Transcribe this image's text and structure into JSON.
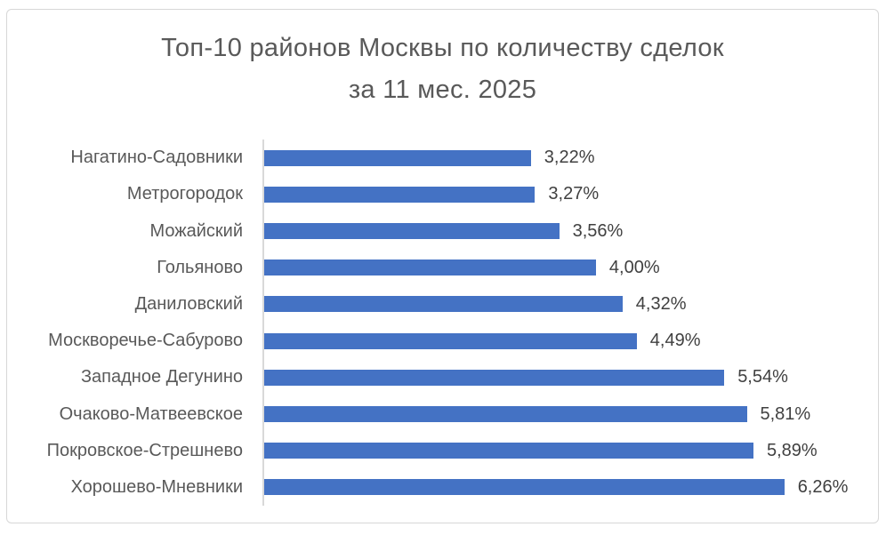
{
  "chart": {
    "title_line1": "Топ-10 районов Москвы по количеству сделок",
    "title_line2": "за 11 мес. 2025"
  },
  "chart_data": {
    "type": "bar",
    "orientation": "horizontal",
    "title": "Топ-10 районов Москвы по количеству сделок за 11 мес. 2025",
    "categories": [
      "Нагатино-Садовники",
      "Метрогородок",
      "Можайский",
      "Гольяново",
      "Даниловский",
      "Москворечье-Сабурово",
      "Западное Дегунино",
      "Очаково-Матвеевское",
      "Покровское-Стрешнево",
      "Хорошево-Мневники"
    ],
    "values": [
      3.22,
      3.27,
      3.56,
      4.0,
      4.32,
      4.49,
      5.54,
      5.81,
      5.89,
      6.26
    ],
    "value_labels": [
      "3,22%",
      "3,27%",
      "3,56%",
      "4,00%",
      "4,32%",
      "4,49%",
      "5,54%",
      "5,81%",
      "5,89%",
      "6,26%"
    ],
    "xlabel": "",
    "ylabel": "",
    "xlim": [
      0,
      7
    ],
    "grid": false,
    "legend": false,
    "data_labels": true,
    "colors": {
      "bar": "#4472c4",
      "axis_line": "#d9d9d9",
      "title_text": "#595959",
      "category_text": "#595959",
      "value_text": "#404040",
      "frame_border": "#d7d7d7"
    }
  }
}
